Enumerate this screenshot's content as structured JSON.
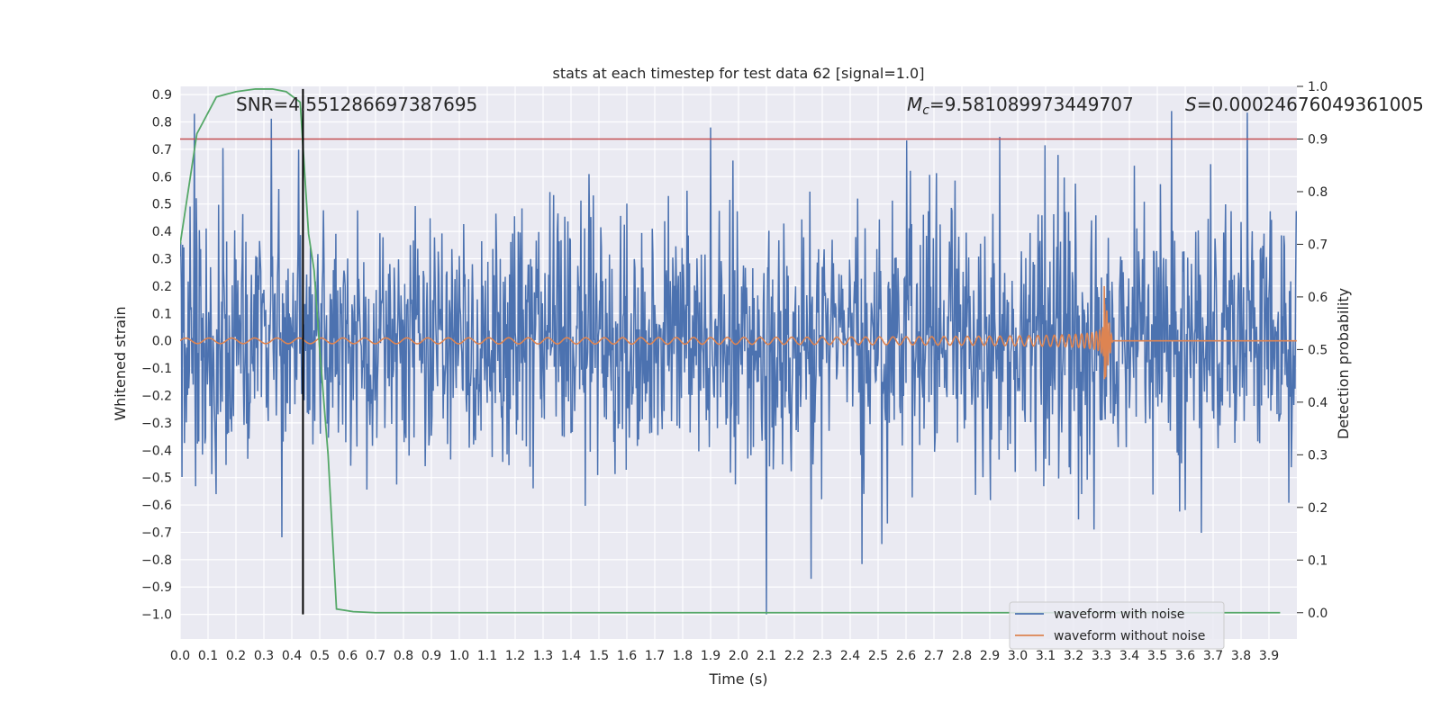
{
  "chart_data": {
    "type": "line",
    "title": "stats at each timestep for test data 62 [signal=1.0]",
    "xlabel": "Time (s)",
    "ylabel": "Whitened strain",
    "y2label": "Detection probability",
    "xlim": [
      0.0,
      4.0
    ],
    "ylim": [
      -1.09,
      0.93
    ],
    "y2lim": [
      -0.05,
      1.0
    ],
    "x_ticks": [
      "0.0",
      "0.1",
      "0.2",
      "0.3",
      "0.4",
      "0.5",
      "0.6",
      "0.7",
      "0.8",
      "0.9",
      "1.0",
      "1.1",
      "1.2",
      "1.3",
      "1.4",
      "1.5",
      "1.6",
      "1.7",
      "1.8",
      "1.9",
      "2.0",
      "2.1",
      "2.2",
      "2.3",
      "2.4",
      "2.5",
      "2.6",
      "2.7",
      "2.8",
      "2.9",
      "3.0",
      "3.1",
      "3.2",
      "3.3",
      "3.4",
      "3.5",
      "3.6",
      "3.7",
      "3.8",
      "3.9"
    ],
    "y_ticks": [
      "0.9",
      "0.8",
      "0.7",
      "0.6",
      "0.5",
      "0.4",
      "0.3",
      "0.2",
      "0.1",
      "0.0",
      "−0.1",
      "−0.2",
      "−0.3",
      "−0.4",
      "−0.5",
      "−0.6",
      "−0.7",
      "−0.8",
      "−0.9",
      "−1.0"
    ],
    "y2_ticks": [
      "1.0",
      "0.9",
      "0.8",
      "0.7",
      "0.6",
      "0.5",
      "0.4",
      "0.3",
      "0.2",
      "0.1",
      "0.0"
    ],
    "grid": true,
    "legend_position": "bottom-right",
    "colors": {
      "noise": "#4c72b0",
      "clean": "#dd8452",
      "prob": "#55a868",
      "threshold": "#c44e52",
      "marker": "#000000",
      "background": "#eaeaf2",
      "grid": "#ffffff"
    },
    "annotations": {
      "snr": "SNR=4.551286697387695",
      "mc": "=9.581089973449707",
      "mc_symbol": "M",
      "mc_sub": "c",
      "s": "=0.00024676049361005",
      "s_symbol": "S"
    },
    "series": [
      {
        "name": "waveform with noise",
        "axis": "left",
        "description_value_range": [
          -1.0,
          0.84
        ],
        "peaks": [
          [
            0.05,
            0.83
          ],
          [
            3.55,
            0.84
          ],
          [
            1.9,
            0.78
          ],
          [
            2.1,
            -1.0
          ],
          [
            2.26,
            -0.87
          ]
        ]
      },
      {
        "name": "waveform without noise",
        "axis": "left",
        "chirp_start_amplitude": 0.01,
        "merger_time": 3.31,
        "merger_peak": 0.2,
        "merger_trough": -0.14
      },
      {
        "axis": "right",
        "x": [
          0.0,
          0.06,
          0.13,
          0.2,
          0.27,
          0.33,
          0.38,
          0.43,
          0.46,
          0.48,
          0.5,
          0.53,
          0.56,
          0.62,
          0.7,
          1.0,
          2.0,
          3.0,
          3.94
        ],
        "values": [
          0.7,
          0.91,
          0.98,
          0.99,
          0.995,
          0.995,
          0.99,
          0.97,
          0.72,
          0.65,
          0.5,
          0.3,
          0.007,
          0.002,
          0.0,
          0.0,
          0.0,
          0.0,
          0.0
        ]
      },
      {
        "axis": "right",
        "constant": 0.9
      },
      {
        "axis": "both",
        "vertical_at_x": 0.44
      }
    ]
  }
}
